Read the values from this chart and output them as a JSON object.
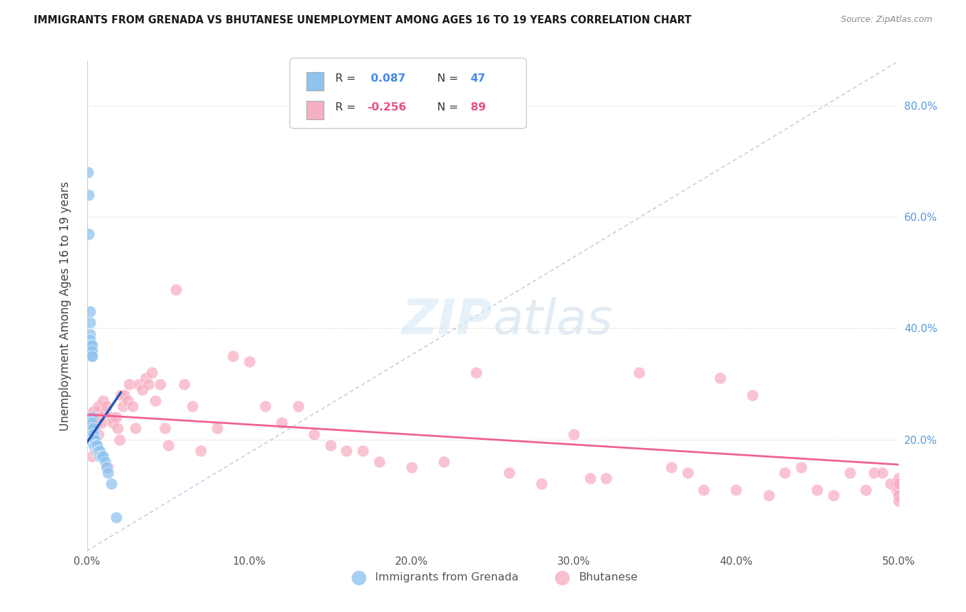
{
  "title": "IMMIGRANTS FROM GRENADA VS BHUTANESE UNEMPLOYMENT AMONG AGES 16 TO 19 YEARS CORRELATION CHART",
  "source": "Source: ZipAtlas.com",
  "ylabel": "Unemployment Among Ages 16 to 19 years",
  "xlim": [
    0.0,
    0.5
  ],
  "ylim": [
    0.0,
    0.88
  ],
  "xtick_pos": [
    0.0,
    0.1,
    0.2,
    0.3,
    0.4,
    0.5
  ],
  "xticklabels": [
    "0.0%",
    "10.0%",
    "20.0%",
    "30.0%",
    "40.0%",
    "50.0%"
  ],
  "ytick_right_pos": [
    0.2,
    0.4,
    0.6,
    0.8
  ],
  "ytick_right_labels": [
    "20.0%",
    "40.0%",
    "60.0%",
    "80.0%"
  ],
  "grenada_R": "0.087",
  "grenada_N": "47",
  "bhutanese_R": "-0.256",
  "bhutanese_N": "89",
  "grenada_color": "#90c4ef",
  "bhutanese_color": "#f7afc3",
  "grenada_trend_color": "#2255bb",
  "bhutanese_trend_color": "#f06090",
  "diagonal_color": "#aabfda",
  "background_color": "#ffffff",
  "grenada_x": [
    0.0005,
    0.001,
    0.001,
    0.0015,
    0.0015,
    0.002,
    0.002,
    0.002,
    0.002,
    0.002,
    0.0025,
    0.003,
    0.003,
    0.003,
    0.003,
    0.003,
    0.003,
    0.003,
    0.003,
    0.004,
    0.004,
    0.004,
    0.004,
    0.004,
    0.004,
    0.004,
    0.005,
    0.005,
    0.005,
    0.005,
    0.005,
    0.005,
    0.006,
    0.006,
    0.006,
    0.007,
    0.007,
    0.008,
    0.008,
    0.009,
    0.009,
    0.01,
    0.011,
    0.012,
    0.013,
    0.015,
    0.018
  ],
  "grenada_y": [
    0.68,
    0.64,
    0.57,
    0.22,
    0.2,
    0.43,
    0.41,
    0.39,
    0.38,
    0.37,
    0.37,
    0.37,
    0.35,
    0.36,
    0.35,
    0.24,
    0.23,
    0.22,
    0.21,
    0.22,
    0.21,
    0.21,
    0.2,
    0.2,
    0.2,
    0.19,
    0.2,
    0.2,
    0.2,
    0.19,
    0.19,
    0.19,
    0.19,
    0.18,
    0.19,
    0.18,
    0.18,
    0.18,
    0.17,
    0.17,
    0.17,
    0.17,
    0.16,
    0.15,
    0.14,
    0.12,
    0.06
  ],
  "bhutanese_x": [
    0.001,
    0.002,
    0.003,
    0.003,
    0.004,
    0.004,
    0.005,
    0.005,
    0.005,
    0.006,
    0.006,
    0.007,
    0.007,
    0.008,
    0.009,
    0.01,
    0.011,
    0.012,
    0.013,
    0.015,
    0.016,
    0.018,
    0.019,
    0.02,
    0.021,
    0.022,
    0.023,
    0.025,
    0.026,
    0.028,
    0.03,
    0.032,
    0.034,
    0.036,
    0.038,
    0.04,
    0.042,
    0.045,
    0.048,
    0.05,
    0.055,
    0.06,
    0.065,
    0.07,
    0.08,
    0.09,
    0.1,
    0.11,
    0.12,
    0.13,
    0.14,
    0.15,
    0.16,
    0.17,
    0.18,
    0.2,
    0.22,
    0.24,
    0.26,
    0.28,
    0.3,
    0.31,
    0.32,
    0.34,
    0.36,
    0.37,
    0.38,
    0.39,
    0.4,
    0.41,
    0.42,
    0.43,
    0.44,
    0.45,
    0.46,
    0.47,
    0.48,
    0.485,
    0.49,
    0.495,
    0.498,
    0.499,
    0.5,
    0.5,
    0.5,
    0.5,
    0.5,
    0.5,
    0.5
  ],
  "bhutanese_y": [
    0.2,
    0.22,
    0.21,
    0.17,
    0.25,
    0.25,
    0.22,
    0.22,
    0.18,
    0.25,
    0.23,
    0.26,
    0.21,
    0.24,
    0.23,
    0.27,
    0.25,
    0.26,
    0.15,
    0.24,
    0.23,
    0.24,
    0.22,
    0.2,
    0.28,
    0.26,
    0.28,
    0.27,
    0.3,
    0.26,
    0.22,
    0.3,
    0.29,
    0.31,
    0.3,
    0.32,
    0.27,
    0.3,
    0.22,
    0.19,
    0.47,
    0.3,
    0.26,
    0.18,
    0.22,
    0.35,
    0.34,
    0.26,
    0.23,
    0.26,
    0.21,
    0.19,
    0.18,
    0.18,
    0.16,
    0.15,
    0.16,
    0.32,
    0.14,
    0.12,
    0.21,
    0.13,
    0.13,
    0.32,
    0.15,
    0.14,
    0.11,
    0.31,
    0.11,
    0.28,
    0.1,
    0.14,
    0.15,
    0.11,
    0.1,
    0.14,
    0.11,
    0.14,
    0.14,
    0.12,
    0.12,
    0.11,
    0.11,
    0.12,
    0.13,
    0.1,
    0.1,
    0.09,
    0.12
  ],
  "grenada_trend_x": [
    0.0,
    0.021
  ],
  "grenada_trend_y_start": 0.195,
  "grenada_trend_y_end": 0.285,
  "bhutanese_trend_x": [
    0.0,
    0.5
  ],
  "bhutanese_trend_y_start": 0.245,
  "bhutanese_trend_y_end": 0.155
}
